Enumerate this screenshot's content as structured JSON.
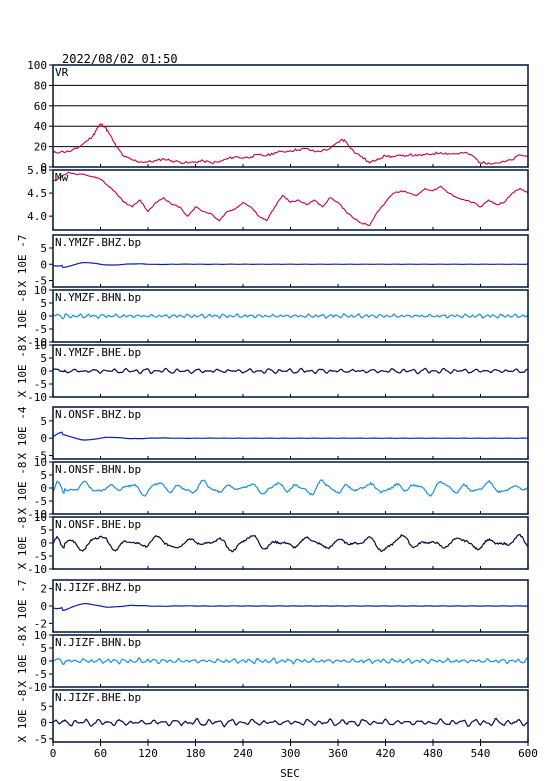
{
  "header": {
    "timestamp": "2022/08/02 01:50"
  },
  "colors": {
    "frame": "#0d2340",
    "vr": "#c8004a",
    "mw": "#c8004a",
    "bhz": "#0a20a8",
    "bhn": "#1e8fd8",
    "bhe": "#050a3a",
    "grid": "#000000"
  },
  "chart_data": [
    {
      "type": "line",
      "label": "VR",
      "ylim": [
        0,
        100
      ],
      "yticks": [
        "100",
        "80",
        "60",
        "40",
        "20",
        "0"
      ],
      "grid": true,
      "x": [
        0,
        10,
        20,
        30,
        40,
        50,
        55,
        60,
        65,
        70,
        80,
        90,
        100,
        110,
        120,
        130,
        140,
        150,
        160,
        170,
        180,
        190,
        200,
        210,
        220,
        230,
        240,
        250,
        260,
        270,
        280,
        290,
        300,
        310,
        320,
        330,
        340,
        350,
        360,
        365,
        370,
        380,
        390,
        400,
        410,
        420,
        430,
        440,
        450,
        460,
        470,
        480,
        490,
        500,
        510,
        520,
        530,
        540,
        550,
        560,
        570,
        580,
        590,
        600
      ],
      "values": [
        14,
        15,
        15,
        18,
        24,
        30,
        37,
        42,
        40,
        34,
        20,
        10,
        7,
        5,
        5,
        6,
        8,
        6,
        5,
        4,
        5,
        6,
        4,
        5,
        8,
        10,
        9,
        10,
        12,
        11,
        14,
        15,
        16,
        17,
        18,
        15,
        16,
        18,
        24,
        27,
        25,
        15,
        10,
        4,
        8,
        11,
        10,
        11,
        12,
        11,
        12,
        13,
        14,
        13,
        13,
        14,
        11,
        4,
        4,
        4,
        5,
        7,
        12,
        10
      ]
    },
    {
      "type": "line",
      "label": "Mw",
      "ylim": [
        3.7,
        5.0
      ],
      "yticks": [
        "5.0",
        "4.5",
        "4.0"
      ],
      "x": [
        0,
        10,
        20,
        30,
        40,
        50,
        60,
        70,
        80,
        90,
        100,
        110,
        120,
        130,
        140,
        150,
        160,
        170,
        180,
        190,
        200,
        210,
        220,
        230,
        240,
        250,
        260,
        270,
        280,
        290,
        300,
        310,
        320,
        330,
        340,
        350,
        360,
        370,
        380,
        390,
        400,
        410,
        420,
        430,
        440,
        450,
        460,
        470,
        480,
        490,
        500,
        510,
        520,
        530,
        540,
        550,
        560,
        570,
        580,
        590,
        600
      ],
      "values": [
        4.75,
        4.85,
        4.95,
        4.9,
        4.9,
        4.85,
        4.8,
        4.65,
        4.5,
        4.3,
        4.2,
        4.35,
        4.1,
        4.3,
        4.4,
        4.25,
        4.2,
        4.0,
        4.2,
        4.1,
        4.05,
        3.9,
        4.1,
        4.15,
        4.3,
        4.2,
        4.0,
        3.9,
        4.2,
        4.45,
        4.3,
        4.35,
        4.25,
        4.35,
        4.2,
        4.4,
        4.3,
        4.1,
        3.95,
        3.85,
        3.8,
        4.1,
        4.3,
        4.5,
        4.55,
        4.5,
        4.45,
        4.6,
        4.55,
        4.65,
        4.5,
        4.4,
        4.35,
        4.3,
        4.2,
        4.35,
        4.25,
        4.3,
        4.5,
        4.6,
        4.5
      ]
    },
    {
      "type": "line",
      "label": "N.YMZF.BHZ.bp",
      "exponent": "10E -7",
      "ylim": [
        -7,
        9
      ],
      "yticks": [
        "5",
        "0",
        "-5"
      ],
      "color_key": "bhz",
      "amplitude": 0.6,
      "decay": true,
      "wavelength": 14,
      "seed": 1
    },
    {
      "type": "line",
      "label": "N.YMZF.BHN.bp",
      "exponent": "10E -8",
      "ylim": [
        -10,
        10
      ],
      "yticks": [
        "10",
        "5",
        "0",
        "-5",
        "-10"
      ],
      "color_key": "bhn",
      "amplitude": 0.7,
      "decay": false,
      "wavelength": 9,
      "seed": 2
    },
    {
      "type": "line",
      "label": "N.YMZF.BHE.bp",
      "exponent": "10E -8",
      "ylim": [
        -10,
        10
      ],
      "yticks": [
        "10",
        "5",
        "0",
        "-5",
        "-10"
      ],
      "color_key": "bhe",
      "amplitude": 0.9,
      "decay": false,
      "wavelength": 13,
      "seed": 3
    },
    {
      "type": "line",
      "label": "N.ONSF.BHZ.bp",
      "exponent": "10E -4",
      "ylim": [
        -6,
        9
      ],
      "yticks": [
        "5",
        "0",
        "-5"
      ],
      "color_key": "bhz",
      "amplitude": 0.6,
      "decay": true,
      "wavelength": 14,
      "seed": 4
    },
    {
      "type": "line",
      "label": "N.ONSF.BHN.bp",
      "exponent": "10E -8",
      "ylim": [
        -10,
        10
      ],
      "yticks": [
        "10",
        "5",
        "0",
        "-5",
        "-10"
      ],
      "color_key": "bhn",
      "amplitude": 2.5,
      "decay": false,
      "wavelength": 30,
      "seed": 5
    },
    {
      "type": "line",
      "label": "N.ONSF.BHE.bp",
      "exponent": "10E -8",
      "ylim": [
        -10,
        10
      ],
      "yticks": [
        "10",
        "5",
        "0",
        "-5",
        "-10"
      ],
      "color_key": "bhe",
      "amplitude": 2.8,
      "decay": false,
      "wavelength": 38,
      "seed": 6
    },
    {
      "type": "line",
      "label": "N.JIZF.BHZ.bp",
      "exponent": "10E -7",
      "ylim": [
        -3,
        3
      ],
      "yticks": [
        "2",
        "0",
        "-2"
      ],
      "color_key": "bhz",
      "amplitude": 0.3,
      "decay": true,
      "wavelength": 14,
      "seed": 7
    },
    {
      "type": "line",
      "label": "N.JIZF.BHN.bp",
      "exponent": "10E -8",
      "ylim": [
        -10,
        10
      ],
      "yticks": [
        "10",
        "5",
        "0",
        "-5",
        "-10"
      ],
      "color_key": "bhn",
      "amplitude": 0.9,
      "decay": false,
      "wavelength": 10,
      "seed": 8
    },
    {
      "type": "line",
      "label": "N.JIZF.BHE.bp",
      "exponent": "10E -8",
      "ylim": [
        -6,
        10
      ],
      "yticks": [
        "5",
        "0",
        "-5"
      ],
      "color_key": "bhe",
      "amplitude": 1.0,
      "decay": false,
      "wavelength": 14,
      "seed": 9
    }
  ],
  "x_axis": {
    "label": "SEC",
    "xlim": [
      0,
      600
    ],
    "ticks": [
      "0",
      "60",
      "120",
      "180",
      "240",
      "300",
      "360",
      "420",
      "480",
      "540",
      "600"
    ]
  }
}
